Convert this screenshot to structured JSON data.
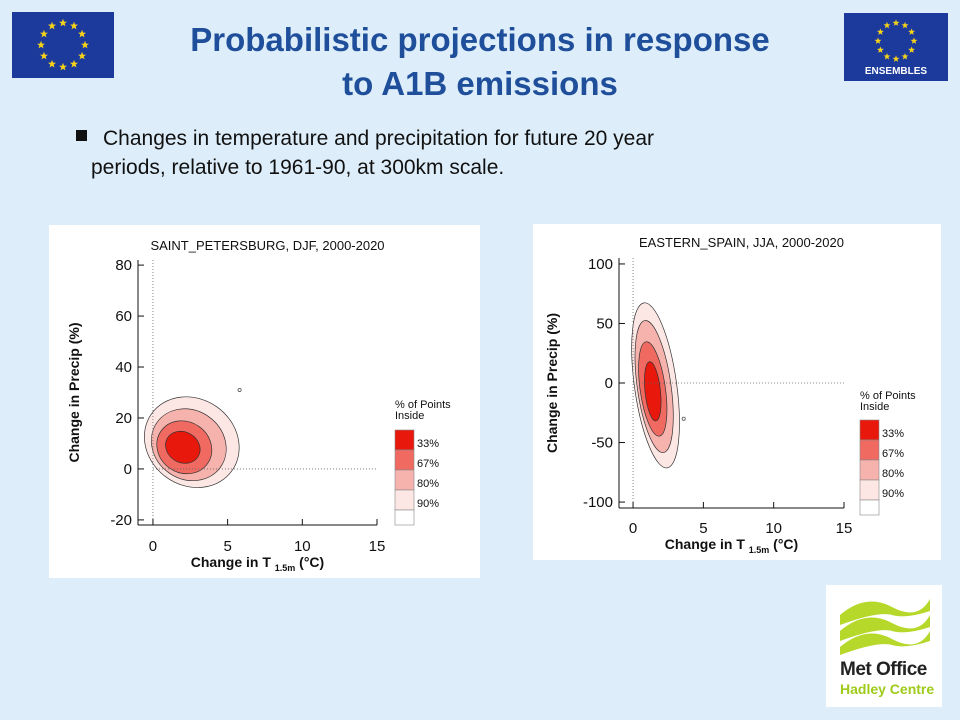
{
  "slide": {
    "title_line1": "Probabilistic projections in response",
    "title_line2": "to A1B emissions",
    "bullet_line1": "Changes in temperature and precipitation for future 20 year",
    "bullet_line2": "periods, relative to 1961-90, at 300km scale.",
    "right_flag_text": "ENSEMBLES",
    "logo_line1": "Met Office",
    "logo_line2": "Hadley Centre"
  },
  "colors": {
    "title": "#1f4e9a",
    "background": "#ddeefa",
    "eu_blue": "#1b3a9c",
    "eu_star": "#f7d21a",
    "logo_green": "#9ecb1a"
  },
  "chart_data": [
    {
      "type": "contour",
      "title": "SAINT_PETERSBURG, DJF, 2000-2020",
      "xlabel": "Change in T",
      "xlabel_sub": "1.5m",
      "xlabel_unit": "(°C)",
      "ylabel": "Change in Precip (%)",
      "xlim": [
        -1,
        15
      ],
      "ylim": [
        -22,
        82
      ],
      "xticks": [
        0,
        5,
        10,
        15
      ],
      "yticks": [
        -20,
        0,
        20,
        40,
        60,
        80
      ],
      "legend_title": "% of Points Inside",
      "legend": [
        {
          "label": "33%",
          "color": "#e8180c"
        },
        {
          "label": "67%",
          "color": "#f06a62"
        },
        {
          "label": "80%",
          "color": "#f6b2ad"
        },
        {
          "label": "90%",
          "color": "#fde7e4"
        }
      ],
      "regions": [
        {
          "level": "90%",
          "cx": 2.6,
          "cy": 10.5,
          "rx": 3.3,
          "ry": 17,
          "angle": 35
        },
        {
          "level": "80%",
          "cx": 2.4,
          "cy": 9.5,
          "rx": 2.6,
          "ry": 13.5,
          "angle": 35
        },
        {
          "level": "67%",
          "cx": 2.1,
          "cy": 8.5,
          "rx": 1.9,
          "ry": 10,
          "angle": 35
        },
        {
          "level": "33%",
          "cx": 2.0,
          "cy": 8.5,
          "rx": 1.2,
          "ry": 6,
          "angle": 30
        }
      ],
      "outliers": [
        {
          "x": 5.8,
          "y": 31
        }
      ]
    },
    {
      "type": "contour",
      "title": "EASTERN_SPAIN, JJA, 2000-2020",
      "xlabel": "Change in T",
      "xlabel_sub": "1.5m",
      "xlabel_unit": "(°C)",
      "ylabel": "Change in Precip (%)",
      "xlim": [
        -1,
        15
      ],
      "ylim": [
        -105,
        105
      ],
      "xticks": [
        0,
        5,
        10,
        15
      ],
      "yticks": [
        -100,
        -50,
        0,
        50,
        100
      ],
      "legend_title": "% of Points Inside",
      "legend": [
        {
          "label": "33%",
          "color": "#e8180c"
        },
        {
          "label": "67%",
          "color": "#f06a62"
        },
        {
          "label": "80%",
          "color": "#f6b2ad"
        },
        {
          "label": "90%",
          "color": "#fde7e4"
        }
      ],
      "regions": [
        {
          "level": "90%",
          "cx": 1.6,
          "cy": -2,
          "rx": 1.5,
          "ry": 70,
          "angle": -8
        },
        {
          "level": "80%",
          "cx": 1.5,
          "cy": -3,
          "rx": 1.2,
          "ry": 56,
          "angle": -8
        },
        {
          "level": "67%",
          "cx": 1.4,
          "cy": -5,
          "rx": 0.9,
          "ry": 40,
          "angle": -8
        },
        {
          "level": "33%",
          "cx": 1.4,
          "cy": -7,
          "rx": 0.55,
          "ry": 25,
          "angle": -6
        }
      ],
      "outliers": [
        {
          "x": 3.6,
          "y": -30
        }
      ]
    }
  ]
}
